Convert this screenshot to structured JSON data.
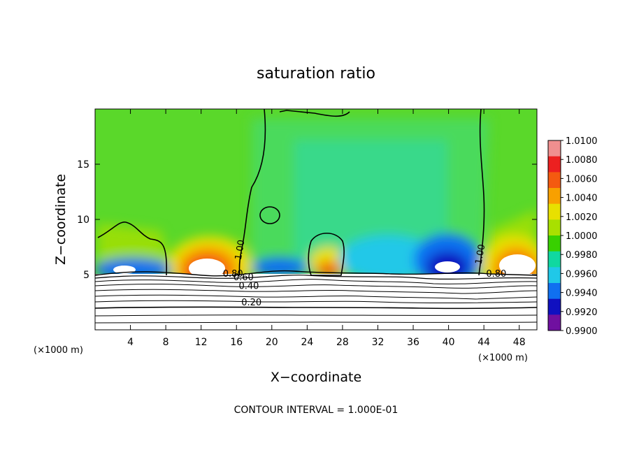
{
  "chart_data": {
    "type": "heatmap",
    "title": "saturation ratio",
    "xlabel": "X−coordinate",
    "ylabel": "Z−coordinate",
    "x_unit": "(×1000 m)",
    "x_unit_right": "(×1000 m)",
    "xlim": [
      0,
      50
    ],
    "ylim": [
      0,
      20
    ],
    "xticks": [
      4,
      8,
      12,
      16,
      20,
      24,
      28,
      32,
      36,
      40,
      44,
      48
    ],
    "yticks": [
      5,
      10,
      15
    ],
    "colorbar": {
      "levels": [
        "1.0100",
        "1.0080",
        "1.0060",
        "1.0040",
        "1.0020",
        "1.0000",
        "0.9980",
        "0.9960",
        "0.9940",
        "0.9920",
        "0.9900"
      ],
      "colors": [
        "#f08f8f",
        "#ec2020",
        "#f45a10",
        "#f8a000",
        "#e8e000",
        "#a8e000",
        "#38d000",
        "#10d8a0",
        "#20c8e8",
        "#1070f0",
        "#1010c0",
        "#7010a0"
      ],
      "lim": [
        0.99,
        1.01
      ]
    },
    "contour_labels": [
      {
        "text": "1.00",
        "x": 16.7,
        "z": 7.2
      },
      {
        "text": "1.00",
        "x": 43.9,
        "z": 6.8
      },
      {
        "text": "0.80",
        "x": 15.6,
        "z": 4.8
      },
      {
        "text": "0.80",
        "x": 45.4,
        "z": 4.8
      },
      {
        "text": "0.60",
        "x": 16.8,
        "z": 4.5
      },
      {
        "text": "0.40",
        "x": 17.4,
        "z": 3.7
      },
      {
        "text": "0.20",
        "x": 17.7,
        "z": 2.2
      }
    ],
    "note": "CONTOUR INTERVAL = 1.000E-01"
  }
}
